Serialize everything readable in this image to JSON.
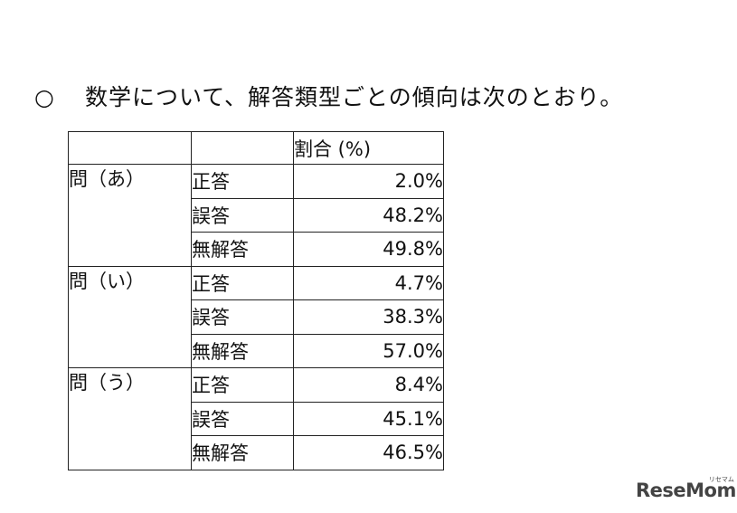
{
  "heading": {
    "bullet": "○",
    "text": "数学について、解答類型ごとの傾向は次のとおり。"
  },
  "table": {
    "header": {
      "col1": "",
      "col2": "",
      "col3": "割合 (%)"
    },
    "groups": [
      {
        "label": "問（あ）",
        "rows": [
          {
            "type": "正答",
            "value": "2.0%"
          },
          {
            "type": "誤答",
            "value": "48.2%"
          },
          {
            "type": "無解答",
            "value": "49.8%"
          }
        ]
      },
      {
        "label": "問（い）",
        "rows": [
          {
            "type": "正答",
            "value": "4.7%"
          },
          {
            "type": "誤答",
            "value": "38.3%"
          },
          {
            "type": "無解答",
            "value": "57.0%"
          }
        ]
      },
      {
        "label": "問（う）",
        "rows": [
          {
            "type": "正答",
            "value": "8.4%"
          },
          {
            "type": "誤答",
            "value": "45.1%"
          },
          {
            "type": "無解答",
            "value": "46.5%"
          }
        ]
      }
    ]
  },
  "watermark": {
    "text": "ReseMom",
    "small_text": "リセマム"
  }
}
